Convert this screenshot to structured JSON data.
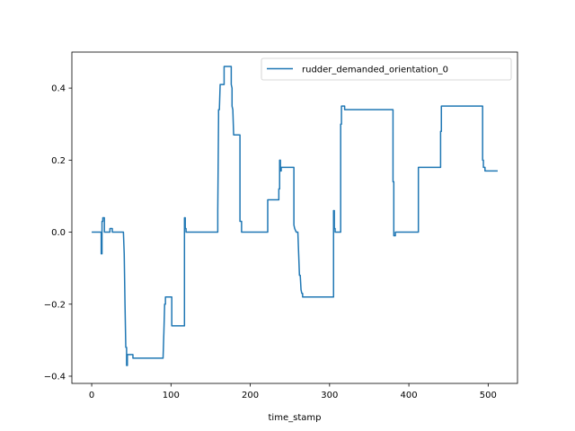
{
  "chart_data": {
    "type": "line",
    "xlabel": "time_stamp",
    "ylabel": "",
    "xlim": [
      -25,
      537
    ],
    "ylim": [
      -0.42,
      0.5
    ],
    "xticks": [
      0,
      100,
      200,
      300,
      400,
      500
    ],
    "xtick_labels": [
      "0",
      "100",
      "200",
      "300",
      "400",
      "500"
    ],
    "yticks": [
      -0.4,
      -0.2,
      0.0,
      0.2,
      0.4
    ],
    "ytick_labels": [
      "−0.4",
      "−0.2",
      "0.0",
      "0.2",
      "0.4"
    ],
    "grid": false,
    "legend": "upper right",
    "series": [
      {
        "name": "rudder_demanded_orientation_0",
        "color": "#1f77b4",
        "x": [
          0,
          12,
          12,
          13,
          13,
          14,
          14,
          16,
          16,
          23,
          23,
          26,
          26,
          40,
          41,
          42,
          43,
          44,
          44,
          45,
          45,
          52,
          52,
          90,
          91,
          92,
          93,
          93,
          101,
          101,
          104,
          104,
          117,
          117,
          118,
          118,
          119,
          119,
          120,
          120,
          159,
          159,
          160,
          160,
          161,
          162,
          162,
          167,
          167,
          176,
          176,
          177,
          177,
          178,
          179,
          180,
          180,
          187,
          187,
          189,
          189,
          191,
          222,
          222,
          236,
          236,
          237,
          237,
          238,
          238,
          239,
          239,
          255,
          255,
          256,
          258,
          260,
          262,
          263,
          264,
          265,
          266,
          266,
          305,
          305,
          306,
          306,
          307,
          307,
          314,
          314,
          315,
          315,
          316,
          316,
          319,
          319,
          380,
          380,
          381,
          381,
          383,
          383,
          412,
          412,
          414,
          414,
          440,
          440,
          441,
          441,
          492,
          492,
          493,
          493,
          494,
          494,
          496,
          496,
          512
        ],
        "y": [
          0,
          0,
          -0.06,
          -0.06,
          0.03,
          0.03,
          0.04,
          0.04,
          0,
          0,
          0.01,
          0.01,
          0,
          0,
          -0.06,
          -0.2,
          -0.32,
          -0.32,
          -0.37,
          -0.37,
          -0.34,
          -0.34,
          -0.35,
          -0.35,
          -0.28,
          -0.2,
          -0.2,
          -0.18,
          -0.18,
          -0.26,
          -0.26,
          -0.26,
          -0.26,
          0.04,
          0.04,
          0.01,
          0.01,
          0,
          0,
          0,
          0,
          0.06,
          0.32,
          0.34,
          0.34,
          0.41,
          0.41,
          0.41,
          0.46,
          0.46,
          0.41,
          0.4,
          0.35,
          0.34,
          0.27,
          0.27,
          0.27,
          0.27,
          0.03,
          0.03,
          0,
          0,
          0,
          0.09,
          0.09,
          0.12,
          0.12,
          0.2,
          0.2,
          0.17,
          0.17,
          0.18,
          0.18,
          0.02,
          0.01,
          0,
          0,
          -0.12,
          -0.12,
          -0.16,
          -0.17,
          -0.17,
          -0.18,
          -0.18,
          0.06,
          0.06,
          0.01,
          0.01,
          0,
          0,
          0.3,
          0.3,
          0.35,
          0.35,
          0.35,
          0.35,
          0.34,
          0.34,
          0.14,
          0.14,
          -0.01,
          -0.01,
          0,
          0,
          0.18,
          0.18,
          0.18,
          0.18,
          0.28,
          0.28,
          0.35,
          0.35,
          0.35,
          0.35,
          0.2,
          0.2,
          0.18,
          0.18,
          0.17,
          0.17
        ]
      }
    ]
  }
}
